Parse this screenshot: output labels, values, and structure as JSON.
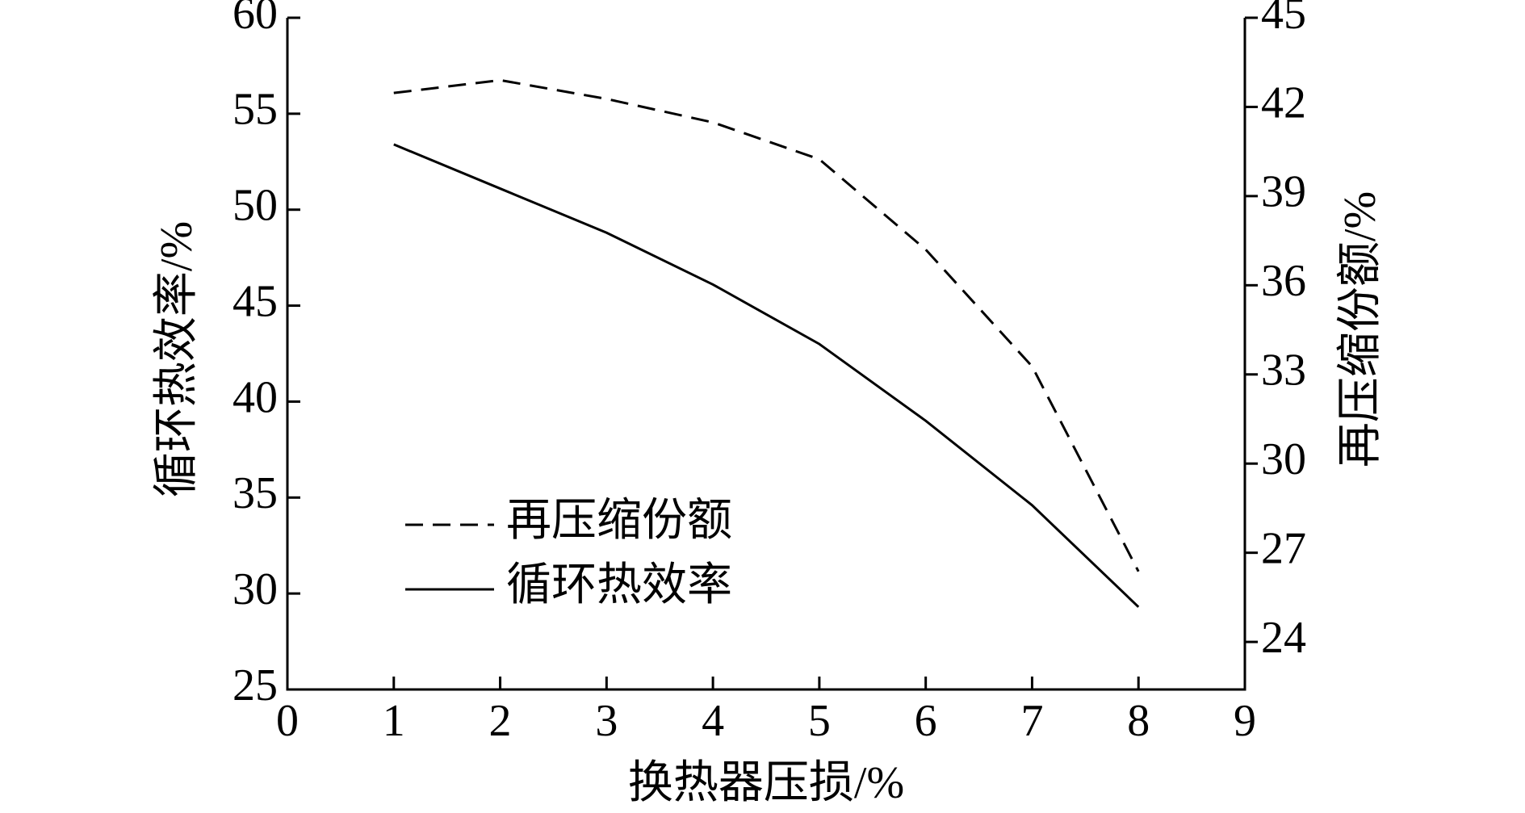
{
  "chart_data": {
    "type": "line",
    "x_label": "换热器压损/%",
    "y_label": "循环热效率/%",
    "y2_label": "再压缩份额/%",
    "x": [
      1,
      2,
      3,
      4,
      5,
      6,
      7,
      8
    ],
    "xlim": [
      0,
      9
    ],
    "xticks": [
      0,
      1,
      2,
      3,
      4,
      5,
      6,
      7,
      8,
      9
    ],
    "ylim": [
      25,
      60
    ],
    "yticks": [
      25,
      30,
      35,
      40,
      45,
      50,
      55,
      60
    ],
    "y2lim": [
      22.4,
      45
    ],
    "y2ticks": [
      24,
      27,
      30,
      33,
      36,
      39,
      42,
      45
    ],
    "legend": "lower left",
    "series": [
      {
        "name": "再压缩份额",
        "color": "#000000",
        "line_style": "dashed",
        "axis": "y2",
        "values": [
          42.47,
          42.9,
          42.27,
          41.48,
          40.24,
          37.2,
          33.27,
          26.37
        ]
      },
      {
        "name": "循环热效率",
        "color": "#000000",
        "line_style": "solid",
        "values": [
          53.4,
          51.1,
          48.8,
          46.1,
          43.0,
          39.0,
          34.6,
          29.3
        ]
      }
    ]
  }
}
